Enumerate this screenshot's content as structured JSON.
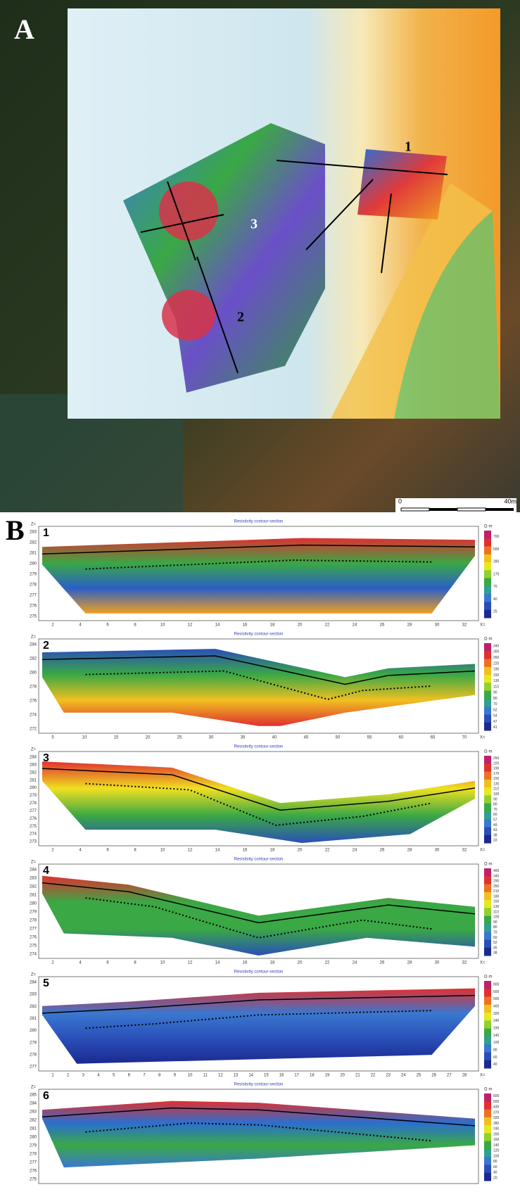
{
  "panel_a": {
    "label": "A",
    "profile_labels": [
      "1",
      "2",
      "3"
    ],
    "scale_labels": [
      "0",
      "40m"
    ]
  },
  "panel_b": {
    "label": "B",
    "sections": [
      {
        "number": "1",
        "title": "Resistivity contour-section",
        "z_label": "Z=",
        "x_label": "X=",
        "unit": "Ω·m",
        "yticks": [
          "283",
          "282",
          "281",
          "280",
          "279",
          "278",
          "277",
          "276",
          "275"
        ],
        "xticks": [
          "2",
          "4",
          "6",
          "8",
          "10",
          "12",
          "14",
          "16",
          "18",
          "20",
          "22",
          "24",
          "26",
          "28",
          "30",
          "32"
        ],
        "colorbar": [
          "700",
          "500",
          "280",
          "170",
          "70",
          "40",
          "25"
        ]
      },
      {
        "number": "2",
        "title": "Resistivity contour-section",
        "z_label": "Z=",
        "x_label": "X=",
        "unit": "Ω·m",
        "yticks": [
          "284",
          "282",
          "280",
          "278",
          "276",
          "274",
          "272"
        ],
        "xticks": [
          "5",
          "10",
          "15",
          "20",
          "25",
          "30",
          "35",
          "40",
          "45",
          "50",
          "55",
          "60",
          "65",
          "70"
        ],
        "colorbar": [
          "340",
          "300",
          "260",
          "220",
          "190",
          "150",
          "130",
          "110",
          "90",
          "80",
          "70",
          "62",
          "54",
          "47",
          "41"
        ]
      },
      {
        "number": "3",
        "title": "Resistivity contour-section",
        "z_label": "Z=",
        "x_label": "X=",
        "unit": "Ω·m",
        "yticks": [
          "284",
          "283",
          "282",
          "281",
          "280",
          "279",
          "278",
          "277",
          "276",
          "275",
          "274",
          "273"
        ],
        "xticks": [
          "2",
          "4",
          "6",
          "8",
          "10",
          "12",
          "14",
          "16",
          "18",
          "20",
          "22",
          "24",
          "26",
          "28",
          "30",
          "32"
        ],
        "colorbar": [
          "250",
          "220",
          "190",
          "170",
          "150",
          "130",
          "110",
          "100",
          "90",
          "80",
          "70",
          "60",
          "57",
          "49",
          "43",
          "38",
          "33"
        ]
      },
      {
        "number": "4",
        "title": "Resistivity contour-section",
        "z_label": "Z=",
        "x_label": "X=",
        "unit": "Ω·m",
        "yticks": [
          "284",
          "283",
          "282",
          "281",
          "280",
          "279",
          "278",
          "277",
          "276",
          "275",
          "274"
        ],
        "xticks": [
          "2",
          "4",
          "6",
          "8",
          "10",
          "12",
          "14",
          "16",
          "18",
          "20",
          "22",
          "24",
          "26",
          "28",
          "30",
          "32"
        ],
        "colorbar": [
          "400",
          "340",
          "290",
          "250",
          "210",
          "180",
          "150",
          "130",
          "110",
          "100",
          "90",
          "80",
          "70",
          "60",
          "52",
          "45",
          "38"
        ]
      },
      {
        "number": "5",
        "title": "Resistivity contour-section",
        "z_label": "Z=",
        "x_label": "X=",
        "unit": "Ω·m",
        "yticks": [
          "284",
          "283",
          "282",
          "281",
          "280",
          "279",
          "278",
          "277"
        ],
        "xticks": [
          "1",
          "2",
          "3",
          "4",
          "5",
          "6",
          "7",
          "8",
          "9",
          "10",
          "11",
          "12",
          "13",
          "14",
          "15",
          "16",
          "17",
          "18",
          "19",
          "20",
          "21",
          "22",
          "23",
          "24",
          "25",
          "26",
          "27",
          "28"
        ],
        "colorbar": [
          "900",
          "600",
          "500",
          "400",
          "320",
          "240",
          "190",
          "140",
          "100",
          "80",
          "60",
          "40"
        ]
      },
      {
        "number": "6",
        "title": "Resistivity contour-section",
        "z_label": "Z=",
        "unit": "Ω·m",
        "yticks": [
          "285",
          "284",
          "283",
          "282",
          "281",
          "280",
          "279",
          "278",
          "277",
          "276",
          "275"
        ],
        "colorbar": [
          "600",
          "500",
          "430",
          "370",
          "320",
          "280",
          "240",
          "200",
          "160",
          "140",
          "120",
          "100",
          "80",
          "60",
          "40",
          "20"
        ]
      }
    ]
  }
}
